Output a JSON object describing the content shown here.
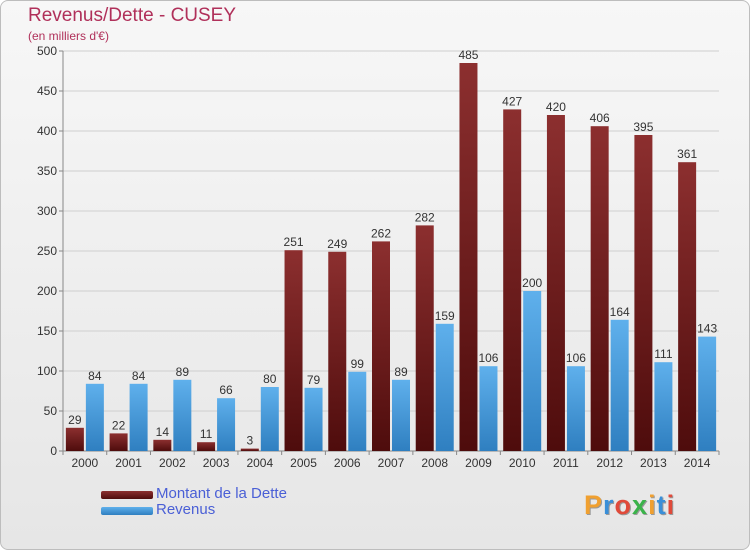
{
  "header": {
    "title": "Revenus/Dette - CUSEY",
    "subtitle": "(en milliers d'€)"
  },
  "legend": {
    "items": [
      {
        "label": "Montant de la Dette",
        "color": "#7a1c1c"
      },
      {
        "label": "Revenus",
        "color": "#3f9be0"
      }
    ]
  },
  "logo": {
    "text": "Proxiti",
    "letter_colors": [
      "#f0a030",
      "#3a8fd8",
      "#e04a3a",
      "#3ab34a",
      "#f0a030",
      "#3a8fd8",
      "#e04a3a"
    ]
  },
  "chart_data": {
    "type": "bar",
    "categories": [
      "2000",
      "2001",
      "2002",
      "2003",
      "2004",
      "2005",
      "2006",
      "2007",
      "2008",
      "2009",
      "2010",
      "2011",
      "2012",
      "2013",
      "2014"
    ],
    "series": [
      {
        "name": "Montant de la Dette",
        "color": "#7a1c1c",
        "values": [
          29,
          22,
          14,
          11,
          3,
          251,
          249,
          262,
          282,
          485,
          427,
          420,
          406,
          395,
          361
        ]
      },
      {
        "name": "Revenus",
        "color": "#3f9be0",
        "values": [
          84,
          84,
          89,
          66,
          80,
          79,
          99,
          89,
          159,
          106,
          200,
          106,
          164,
          111,
          143
        ]
      }
    ],
    "ylim": [
      0,
      500
    ],
    "yticks": [
      0,
      50,
      100,
      150,
      200,
      250,
      300,
      350,
      400,
      450,
      500
    ],
    "grid": true,
    "legend_position": "bottom-left"
  }
}
